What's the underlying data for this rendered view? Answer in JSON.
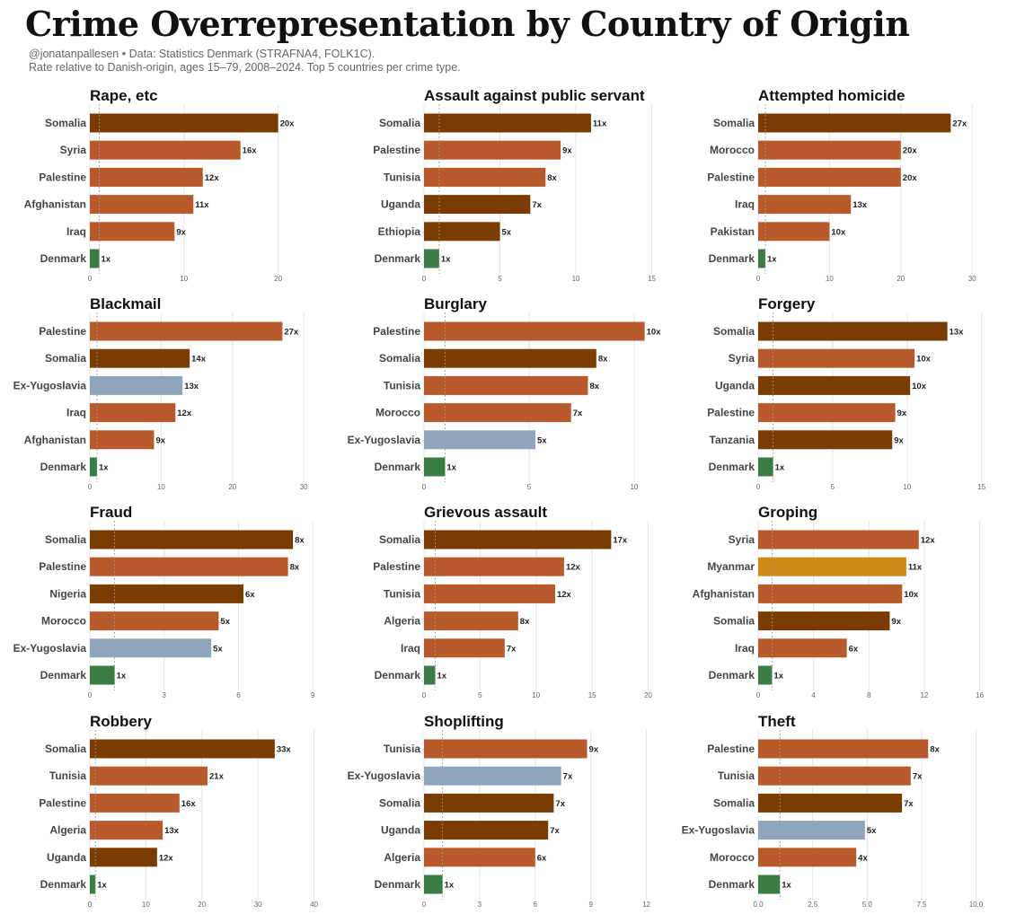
{
  "title": "Crime Overrepresentation by Country of Origin",
  "subtitle_line1": "@jonatanpallesen • Data: Statistics Denmark (STRAFNA4, FOLK1C).",
  "subtitle_line2": "Rate relative to Danish-origin, ages 15–79, 2008–2024. Top 5 countries per crime type.",
  "colors": {
    "east_africa": "#7a3c00",
    "mena": "#b85a2b",
    "ex_yugoslavia": "#8fa5bb",
    "myanmar": "#cf8b17",
    "denmark": "#3a7d44",
    "grid": "#e5e5e5",
    "refline": "#9a9a9a"
  },
  "chart_data": [
    {
      "type": "bar",
      "orientation": "horizontal",
      "title": "Rape, etc",
      "categories": [
        "Somalia",
        "Syria",
        "Palestine",
        "Afghanistan",
        "Iraq",
        "Denmark"
      ],
      "values": [
        20,
        16,
        12,
        11,
        9,
        1
      ],
      "labels": [
        "20x",
        "16x",
        "12x",
        "11x",
        "9x",
        "1x"
      ],
      "color_groups": [
        "east_africa",
        "mena",
        "mena",
        "mena",
        "mena",
        "denmark"
      ],
      "xlim": [
        0,
        25
      ],
      "xticks": [
        0,
        10,
        20
      ],
      "tick_labels": [
        "0",
        "10",
        "20"
      ],
      "reference_line": 1
    },
    {
      "type": "bar",
      "orientation": "horizontal",
      "title": "Assault against public servant",
      "categories": [
        "Somalia",
        "Palestine",
        "Tunisia",
        "Uganda",
        "Ethiopia",
        "Denmark"
      ],
      "values": [
        11,
        9,
        8,
        7,
        5,
        1
      ],
      "labels": [
        "11x",
        "9x",
        "8x",
        "7x",
        "5x",
        "1x"
      ],
      "color_groups": [
        "east_africa",
        "mena",
        "mena",
        "east_africa",
        "east_africa",
        "denmark"
      ],
      "xlim": [
        0,
        15.5
      ],
      "xticks": [
        0,
        5,
        10,
        15
      ],
      "tick_labels": [
        "0",
        "5",
        "10",
        "15"
      ],
      "reference_line": 1
    },
    {
      "type": "bar",
      "orientation": "horizontal",
      "title": "Attempted homicide",
      "categories": [
        "Somalia",
        "Morocco",
        "Palestine",
        "Iraq",
        "Pakistan",
        "Denmark"
      ],
      "values": [
        27,
        20,
        20,
        13,
        10,
        1
      ],
      "labels": [
        "27x",
        "20x",
        "20x",
        "13x",
        "10x",
        "1x"
      ],
      "color_groups": [
        "east_africa",
        "mena",
        "mena",
        "mena",
        "mena",
        "denmark"
      ],
      "xlim": [
        0,
        33
      ],
      "xticks": [
        0,
        10,
        20,
        30
      ],
      "tick_labels": [
        "0",
        "10",
        "20",
        "30"
      ],
      "reference_line": 1
    },
    {
      "type": "bar",
      "orientation": "horizontal",
      "title": "Blackmail",
      "categories": [
        "Palestine",
        "Somalia",
        "Ex-Yugoslavia",
        "Iraq",
        "Afghanistan",
        "Denmark"
      ],
      "values": [
        27,
        14,
        13,
        12,
        9,
        1
      ],
      "labels": [
        "27x",
        "14x",
        "13x",
        "12x",
        "9x",
        "1x"
      ],
      "color_groups": [
        "mena",
        "east_africa",
        "ex_yugoslavia",
        "mena",
        "mena",
        "denmark"
      ],
      "xlim": [
        0,
        33
      ],
      "xticks": [
        0,
        10,
        20,
        30
      ],
      "tick_labels": [
        "0",
        "10",
        "20",
        "30"
      ],
      "reference_line": 1
    },
    {
      "type": "bar",
      "orientation": "horizontal",
      "title": "Burglary",
      "categories": [
        "Palestine",
        "Somalia",
        "Tunisia",
        "Morocco",
        "Ex-Yugoslavia",
        "Denmark"
      ],
      "values": [
        10.5,
        8.2,
        7.8,
        7,
        5.3,
        1
      ],
      "labels": [
        "10x",
        "8x",
        "8x",
        "7x",
        "5x",
        "1x"
      ],
      "color_groups": [
        "mena",
        "east_africa",
        "mena",
        "mena",
        "ex_yugoslavia",
        "denmark"
      ],
      "xlim": [
        0,
        11.2
      ],
      "xticks": [
        0,
        5,
        10
      ],
      "tick_labels": [
        "0",
        "5",
        "10"
      ],
      "reference_line": 1
    },
    {
      "type": "bar",
      "orientation": "horizontal",
      "title": "Forgery",
      "categories": [
        "Somalia",
        "Syria",
        "Uganda",
        "Palestine",
        "Tanzania",
        "Denmark"
      ],
      "values": [
        12.7,
        10.5,
        10.2,
        9.2,
        9,
        1
      ],
      "labels": [
        "13x",
        "10x",
        "10x",
        "9x",
        "9x",
        "1x"
      ],
      "color_groups": [
        "east_africa",
        "mena",
        "east_africa",
        "mena",
        "east_africa",
        "denmark"
      ],
      "xlim": [
        0,
        15.8
      ],
      "xticks": [
        0,
        5,
        10,
        15
      ],
      "tick_labels": [
        "0",
        "5",
        "10",
        "15"
      ],
      "reference_line": 1
    },
    {
      "type": "bar",
      "orientation": "horizontal",
      "title": "Fraud",
      "categories": [
        "Somalia",
        "Palestine",
        "Nigeria",
        "Morocco",
        "Ex-Yugoslavia",
        "Denmark"
      ],
      "values": [
        8.2,
        8,
        6.2,
        5.2,
        4.9,
        1
      ],
      "labels": [
        "8x",
        "8x",
        "6x",
        "5x",
        "5x",
        "1x"
      ],
      "color_groups": [
        "east_africa",
        "mena",
        "east_africa",
        "mena",
        "ex_yugoslavia",
        "denmark"
      ],
      "xlim": [
        0,
        9.5
      ],
      "xticks": [
        0,
        3,
        6,
        9
      ],
      "tick_labels": [
        "0",
        "3",
        "6",
        "9"
      ],
      "reference_line": 1
    },
    {
      "type": "bar",
      "orientation": "horizontal",
      "title": "Grievous assault",
      "categories": [
        "Somalia",
        "Palestine",
        "Tunisia",
        "Algeria",
        "Iraq",
        "Denmark"
      ],
      "values": [
        16.7,
        12.5,
        11.7,
        8.4,
        7.2,
        1
      ],
      "labels": [
        "17x",
        "12x",
        "12x",
        "8x",
        "7x",
        "1x"
      ],
      "color_groups": [
        "east_africa",
        "mena",
        "mena",
        "mena",
        "mena",
        "denmark"
      ],
      "xlim": [
        0,
        21
      ],
      "xticks": [
        0,
        5,
        10,
        15,
        20
      ],
      "tick_labels": [
        "0",
        "5",
        "10",
        "15",
        "20"
      ],
      "reference_line": 1
    },
    {
      "type": "bar",
      "orientation": "horizontal",
      "title": "Groping",
      "categories": [
        "Syria",
        "Myanmar",
        "Afghanistan",
        "Somalia",
        "Iraq",
        "Denmark"
      ],
      "values": [
        11.6,
        10.7,
        10.4,
        9.5,
        6.4,
        1
      ],
      "labels": [
        "12x",
        "11x",
        "10x",
        "9x",
        "6x",
        "1x"
      ],
      "color_groups": [
        "mena",
        "myanmar",
        "mena",
        "east_africa",
        "mena",
        "denmark"
      ],
      "xlim": [
        0,
        17
      ],
      "xticks": [
        0,
        4,
        8,
        12,
        16
      ],
      "tick_labels": [
        "0",
        "4",
        "8",
        "12",
        "16"
      ],
      "reference_line": 1
    },
    {
      "type": "bar",
      "orientation": "horizontal",
      "title": "Robbery",
      "categories": [
        "Somalia",
        "Tunisia",
        "Palestine",
        "Algeria",
        "Uganda",
        "Denmark"
      ],
      "values": [
        33,
        21,
        16,
        13,
        12,
        1
      ],
      "labels": [
        "33x",
        "21x",
        "16x",
        "13x",
        "12x",
        "1x"
      ],
      "color_groups": [
        "east_africa",
        "mena",
        "mena",
        "mena",
        "east_africa",
        "denmark"
      ],
      "xlim": [
        0,
        42
      ],
      "xticks": [
        0,
        10,
        20,
        30,
        40
      ],
      "tick_labels": [
        "0",
        "10",
        "20",
        "30",
        "40"
      ],
      "reference_line": 1
    },
    {
      "type": "bar",
      "orientation": "horizontal",
      "title": "Shoplifting",
      "categories": [
        "Tunisia",
        "Ex-Yugoslavia",
        "Somalia",
        "Uganda",
        "Algeria",
        "Denmark"
      ],
      "values": [
        8.8,
        7.4,
        7,
        6.7,
        6,
        1
      ],
      "labels": [
        "9x",
        "7x",
        "7x",
        "7x",
        "6x",
        "1x"
      ],
      "color_groups": [
        "mena",
        "ex_yugoslavia",
        "east_africa",
        "east_africa",
        "mena",
        "denmark"
      ],
      "xlim": [
        0,
        12.7
      ],
      "xticks": [
        0,
        3,
        6,
        9,
        12
      ],
      "tick_labels": [
        "0",
        "3",
        "6",
        "9",
        "12"
      ],
      "reference_line": 1
    },
    {
      "type": "bar",
      "orientation": "horizontal",
      "title": "Theft",
      "categories": [
        "Palestine",
        "Tunisia",
        "Somalia",
        "Ex-Yugoslavia",
        "Morocco",
        "Denmark"
      ],
      "values": [
        7.8,
        7,
        6.6,
        4.9,
        4.5,
        1
      ],
      "labels": [
        "8x",
        "7x",
        "7x",
        "5x",
        "4x",
        "1x"
      ],
      "color_groups": [
        "mena",
        "mena",
        "east_africa",
        "ex_yugoslavia",
        "mena",
        "denmark"
      ],
      "xlim": [
        0,
        10.8
      ],
      "xticks": [
        0,
        2.5,
        5,
        7.5,
        10
      ],
      "tick_labels": [
        "0.0",
        "2.5",
        "5.0",
        "7.5",
        "10.0"
      ],
      "reference_line": 1
    }
  ]
}
